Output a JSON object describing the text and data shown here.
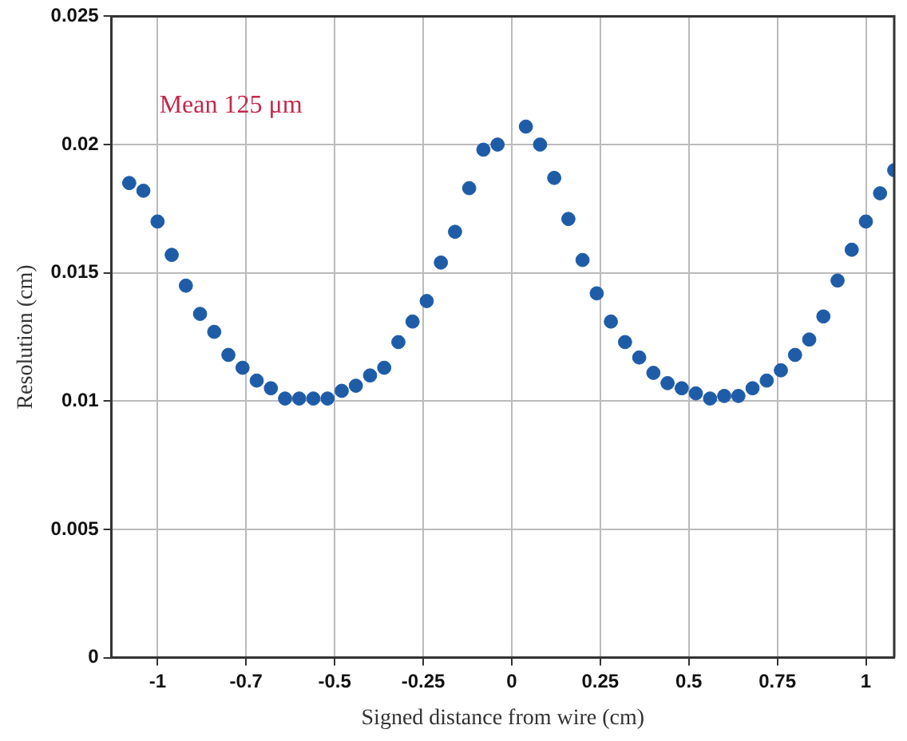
{
  "chart_data": {
    "type": "scatter",
    "xlabel": "Signed distance from wire (cm)",
    "ylabel": "Resolution (cm)",
    "annotations": [
      "Mean 125 μm"
    ],
    "series": [
      {
        "color": "#1f5ca8",
        "x": [
          -1.08,
          -1.04,
          -1.0,
          -0.96,
          -0.92,
          -0.88,
          -0.84,
          -0.8,
          -0.76,
          -0.72,
          -0.68,
          -0.64,
          -0.6,
          -0.56,
          -0.52,
          -0.48,
          -0.44,
          -0.4,
          -0.36,
          -0.32,
          -0.28,
          -0.24,
          -0.2,
          -0.16,
          -0.12,
          -0.08,
          -0.04,
          0.04,
          0.08,
          0.12,
          0.16,
          0.2,
          0.24,
          0.28,
          0.32,
          0.36,
          0.4,
          0.44,
          0.48,
          0.52,
          0.56,
          0.6,
          0.64,
          0.68,
          0.72,
          0.76,
          0.8,
          0.84,
          0.88,
          0.92,
          0.96,
          1.0,
          1.04,
          1.08
        ],
        "values": [
          0.0185,
          0.0182,
          0.017,
          0.0157,
          0.0145,
          0.0134,
          0.0127,
          0.0118,
          0.0113,
          0.0108,
          0.0105,
          0.0101,
          0.0101,
          0.0101,
          0.0101,
          0.0104,
          0.0106,
          0.011,
          0.0113,
          0.0123,
          0.0131,
          0.0139,
          0.0154,
          0.0166,
          0.0183,
          0.0198,
          0.02,
          0.0207,
          0.02,
          0.0187,
          0.0171,
          0.0155,
          0.0142,
          0.0131,
          0.0123,
          0.0117,
          0.0111,
          0.0107,
          0.0105,
          0.0103,
          0.0101,
          0.0102,
          0.0102,
          0.0105,
          0.0108,
          0.0112,
          0.0118,
          0.0124,
          0.0133,
          0.0147,
          0.0159,
          0.017,
          0.0181,
          0.019
        ]
      }
    ],
    "xlim": [
      -1.13,
      1.08
    ],
    "xticks": [
      -1,
      {
        "value": -0.75,
        "label": "-0.7"
      },
      -0.5,
      -0.25,
      0,
      0.25,
      0.5,
      0.75,
      1
    ],
    "ylim": [
      0,
      0.025
    ],
    "yticks": [
      0,
      0.005,
      0.01,
      0.015,
      0.02,
      0.025
    ],
    "grid": true,
    "legend": false,
    "marker": "circle"
  }
}
